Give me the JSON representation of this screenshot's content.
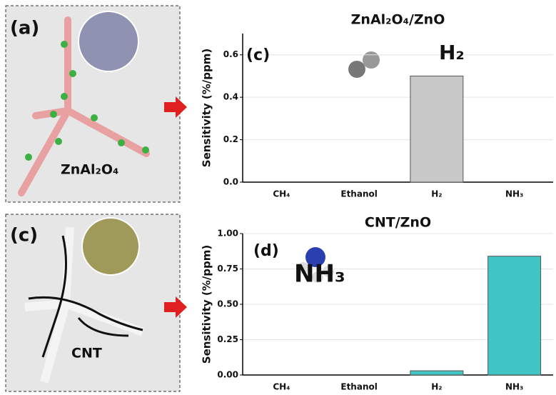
{
  "panels": [
    {
      "label": "(a)",
      "caption": "ZnAl₂O₄"
    },
    {
      "label": "(c)",
      "caption": "CNT"
    }
  ],
  "chart_data": [
    {
      "type": "bar",
      "title": "ZnAl₂O₄/ZnO",
      "y_label": "Sensitivity (%/ppm)",
      "annotations": [
        "(c)",
        "H₂"
      ],
      "categories": [
        "CH₄",
        "Ethanol",
        "H₂",
        "NH₃"
      ],
      "values": [
        0,
        0,
        0.5,
        0
      ],
      "color": "#c8c8c8",
      "ylim": [
        0,
        0.7
      ],
      "yticks": [
        {
          "value": 0,
          "label": "0.0"
        },
        0.2,
        0.4,
        0.6
      ],
      "grid": true
    },
    {
      "type": "bar",
      "title": "CNT/ZnO",
      "y_label": "Sensitivity (%/ppm)",
      "annotations": [
        "(d)",
        "NH₃"
      ],
      "categories": [
        "CH₄",
        "Ethanol",
        "H₂",
        "NH₃"
      ],
      "values": [
        0,
        0,
        0.03,
        0.84
      ],
      "color": "#40c4c4",
      "ylim": [
        0,
        1.0
      ],
      "yticks": [
        {
          "value": 0,
          "label": "0.00"
        },
        {
          "value": 0.25,
          "label": "0.25"
        },
        {
          "value": 0.5,
          "label": "0.50"
        },
        {
          "value": 0.75,
          "label": "0.75"
        },
        {
          "value": 1.0,
          "label": "1.00"
        }
      ],
      "grid": true
    }
  ]
}
